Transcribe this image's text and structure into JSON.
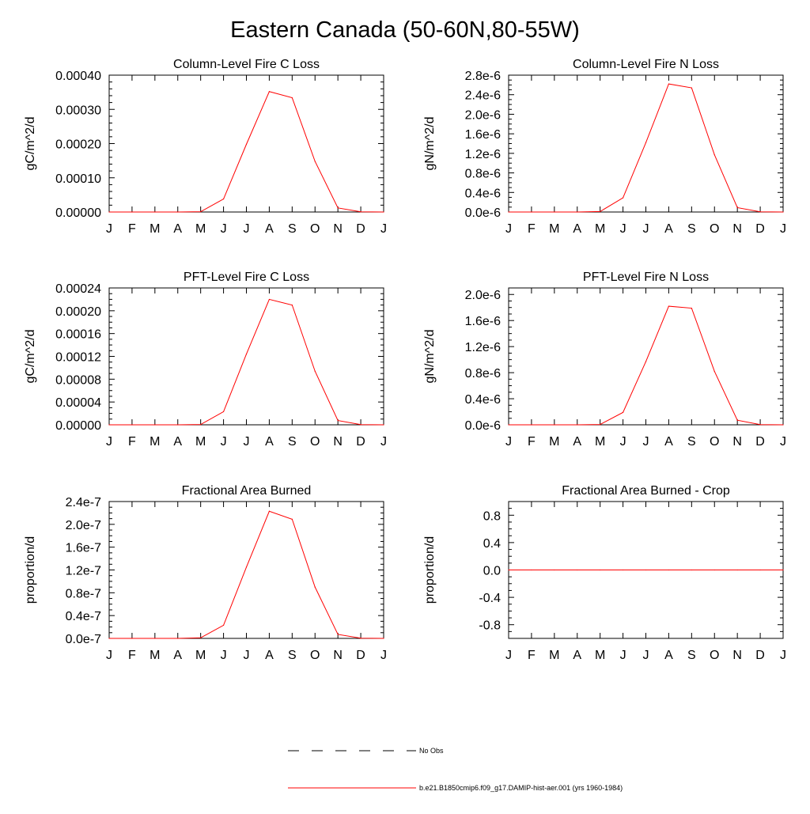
{
  "figure": {
    "title": "Eastern Canada (50-60N,80-55W)"
  },
  "legend": {
    "items": [
      {
        "label": "No Obs",
        "color": "#000000",
        "dash": "dashed"
      },
      {
        "label": "b.e21.B1850cmip6.f09_g17.DAMIP-hist-aer.001 (yrs 1960-1984)",
        "color": "#ff0000",
        "dash": "solid"
      }
    ]
  },
  "colors": {
    "series": "#ff0000",
    "axes": "#000000"
  },
  "chart_data": [
    {
      "type": "line",
      "title": "Column-Level Fire C Loss",
      "ylabel": "gC/m^2/d",
      "xlabel": "",
      "categories": [
        "J",
        "F",
        "M",
        "A",
        "M",
        "J",
        "J",
        "A",
        "S",
        "O",
        "N",
        "D",
        "J"
      ],
      "ylim": [
        0,
        0.0004
      ],
      "yticks": [
        0,
        0.0001,
        0.0002,
        0.0003,
        0.0004
      ],
      "yticklabels": [
        "0.00000",
        "0.00010",
        "0.00020",
        "0.00030",
        "0.00040"
      ],
      "yminor": 4,
      "grid": false,
      "series": [
        {
          "values": [
            0,
            0,
            0,
            0,
            1e-06,
            3.8e-05,
            0.000198,
            0.000352,
            0.000334,
            0.000148,
            1.2e-05,
            5e-07,
            0
          ]
        }
      ]
    },
    {
      "type": "line",
      "title": "Column-Level Fire N Loss",
      "ylabel": "gN/m^2/d",
      "xlabel": "",
      "categories": [
        "J",
        "F",
        "M",
        "A",
        "M",
        "J",
        "J",
        "A",
        "S",
        "O",
        "N",
        "D",
        "J"
      ],
      "ylim": [
        0,
        2.8e-06
      ],
      "yticks": [
        0,
        4e-07,
        8e-07,
        1.2e-06,
        1.6e-06,
        2e-06,
        2.4e-06,
        2.8e-06
      ],
      "yticklabels": [
        "0.0e-6",
        "0.4e-6",
        "0.8e-6",
        "1.2e-6",
        "1.6e-6",
        "2.0e-6",
        "2.4e-6",
        "2.8e-6"
      ],
      "yminor": 3,
      "grid": false,
      "series": [
        {
          "values": [
            0,
            0,
            0,
            0,
            1e-08,
            2.9e-07,
            1.42e-06,
            2.62e-06,
            2.54e-06,
            1.17e-06,
            9e-08,
            5e-09,
            0
          ]
        }
      ]
    },
    {
      "type": "line",
      "title": "PFT-Level Fire C Loss",
      "ylabel": "gC/m^2/d",
      "xlabel": "",
      "categories": [
        "J",
        "F",
        "M",
        "A",
        "M",
        "J",
        "J",
        "A",
        "S",
        "O",
        "N",
        "D",
        "J"
      ],
      "ylim": [
        0,
        0.00024
      ],
      "yticks": [
        0,
        4e-05,
        8e-05,
        0.00012,
        0.00016,
        0.0002,
        0.00024
      ],
      "yticklabels": [
        "0.00000",
        "0.00004",
        "0.00008",
        "0.00012",
        "0.00016",
        "0.00020",
        "0.00024"
      ],
      "yminor": 3,
      "grid": false,
      "series": [
        {
          "values": [
            0,
            0,
            0,
            0,
            5e-07,
            2.3e-05,
            0.000124,
            0.00022,
            0.00021,
            9.4e-05,
            7.5e-06,
            3e-07,
            0
          ]
        }
      ]
    },
    {
      "type": "line",
      "title": "PFT-Level Fire N Loss",
      "ylabel": "gN/m^2/d",
      "xlabel": "",
      "categories": [
        "J",
        "F",
        "M",
        "A",
        "M",
        "J",
        "J",
        "A",
        "S",
        "O",
        "N",
        "D",
        "J"
      ],
      "ylim": [
        0,
        2.1e-06
      ],
      "yticks": [
        0,
        4e-07,
        8e-07,
        1.2e-06,
        1.6e-06,
        2e-06
      ],
      "yticklabels": [
        "0.0e-6",
        "0.4e-6",
        "0.8e-6",
        "1.2e-6",
        "1.6e-6",
        "2.0e-6"
      ],
      "yminor": 3,
      "grid": false,
      "series": [
        {
          "values": [
            0,
            0,
            0,
            0,
            5e-09,
            1.9e-07,
            9.7e-07,
            1.82e-06,
            1.79e-06,
            8.2e-07,
            7e-08,
            3e-09,
            0
          ]
        }
      ]
    },
    {
      "type": "line",
      "title": "Fractional Area Burned",
      "ylabel": "proportion/d",
      "xlabel": "",
      "categories": [
        "J",
        "F",
        "M",
        "A",
        "M",
        "J",
        "J",
        "A",
        "S",
        "O",
        "N",
        "D",
        "J"
      ],
      "ylim": [
        0,
        2.4e-07
      ],
      "yticks": [
        0,
        4e-08,
        8e-08,
        1.2e-07,
        1.6e-07,
        2e-07,
        2.4e-07
      ],
      "yticklabels": [
        "0.0e-7",
        "0.4e-7",
        "0.8e-7",
        "1.2e-7",
        "1.6e-7",
        "2.0e-7",
        "2.4e-7"
      ],
      "yminor": 3,
      "grid": false,
      "series": [
        {
          "values": [
            0,
            0,
            0,
            0,
            1e-09,
            2.3e-08,
            1.25e-07,
            2.23e-07,
            2.09e-07,
            9e-08,
            7e-09,
            3e-10,
            0
          ]
        }
      ]
    },
    {
      "type": "line",
      "title": "Fractional Area Burned - Crop",
      "ylabel": "proportion/d",
      "xlabel": "",
      "categories": [
        "J",
        "F",
        "M",
        "A",
        "M",
        "J",
        "J",
        "A",
        "S",
        "O",
        "N",
        "D",
        "J"
      ],
      "ylim": [
        -1.0,
        1.0
      ],
      "yticks": [
        -0.8,
        -0.4,
        0.0,
        0.4,
        0.8
      ],
      "yticklabels": [
        "-0.8",
        "-0.4",
        "0.0",
        "0.4",
        "0.8"
      ],
      "yminor": 3,
      "grid": false,
      "series": [
        {
          "values": [
            0,
            0,
            0,
            0,
            0,
            0,
            0,
            0,
            0,
            0,
            0,
            0,
            0
          ]
        }
      ]
    }
  ]
}
